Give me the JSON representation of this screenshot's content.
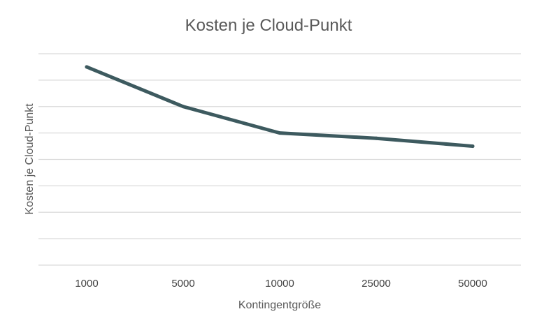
{
  "chart_data": {
    "type": "line",
    "title": "Kosten je Cloud-Punkt",
    "xlabel": "Kontingentgröße",
    "ylabel": "Kosten je Cloud-Punkt",
    "categories": [
      "1000",
      "5000",
      "10000",
      "25000",
      "50000"
    ],
    "series": [
      {
        "values": [
          7.5,
          6.0,
          5.0,
          4.8,
          4.5
        ],
        "color": "#3d5a5f"
      }
    ],
    "ylim": [
      0,
      8
    ],
    "y_gridline_count": 9,
    "y_tick_labels_visible": false,
    "grid": true,
    "legend": "none"
  }
}
